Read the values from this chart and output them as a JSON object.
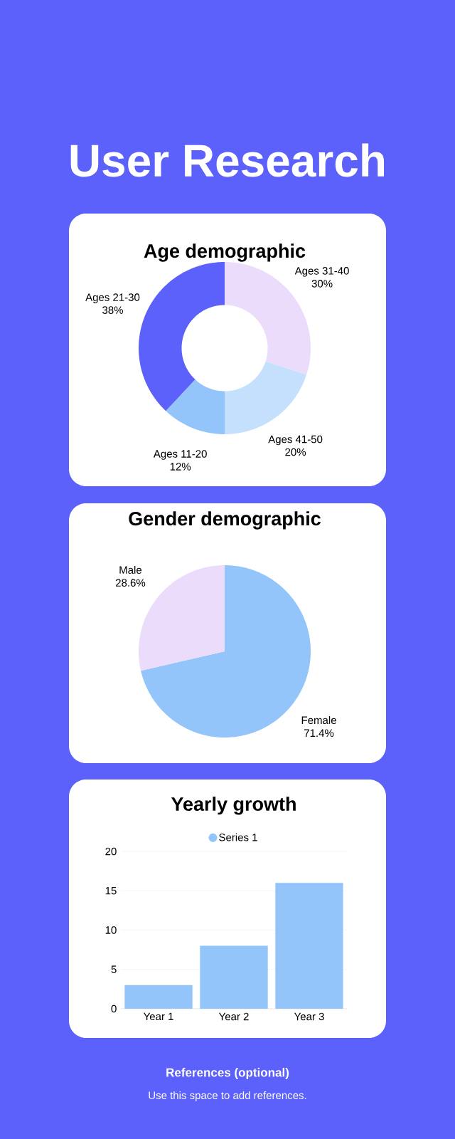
{
  "chart_data": [
    {
      "type": "other",
      "title": "User Research"
    },
    {
      "type": "donut",
      "title": "Age demographic",
      "categories": [
        "Ages 31-40",
        "Ages 41-50",
        "Ages 11-20",
        "Ages 21-30"
      ],
      "values": [
        30,
        20,
        12,
        38
      ],
      "value_labels": [
        "30%",
        "20%",
        "12%",
        "38%"
      ],
      "colors": [
        "#ecdcfc",
        "#c5e0fc",
        "#93c5fb",
        "#5b61fa"
      ]
    },
    {
      "type": "pie",
      "title": "Gender demographic",
      "categories": [
        "Female",
        "Male"
      ],
      "values": [
        71.4,
        28.6
      ],
      "value_labels": [
        "71.4%",
        "28.6%"
      ],
      "colors": [
        "#93c5fb",
        "#ecdcfc"
      ]
    },
    {
      "type": "bar",
      "title": "Yearly growth",
      "categories": [
        "Year 1",
        "Year 2",
        "Year 3"
      ],
      "series": [
        {
          "name": "Series 1",
          "color": "#93c5fb",
          "values": [
            3,
            8,
            16
          ]
        }
      ],
      "ylim": [
        0,
        20
      ],
      "yticks": [
        0,
        5,
        10,
        15,
        20
      ],
      "grid": "y",
      "legend": "top"
    },
    {
      "type": "other",
      "title": "References (optional)",
      "subtitle": "Use this space to add references."
    }
  ]
}
